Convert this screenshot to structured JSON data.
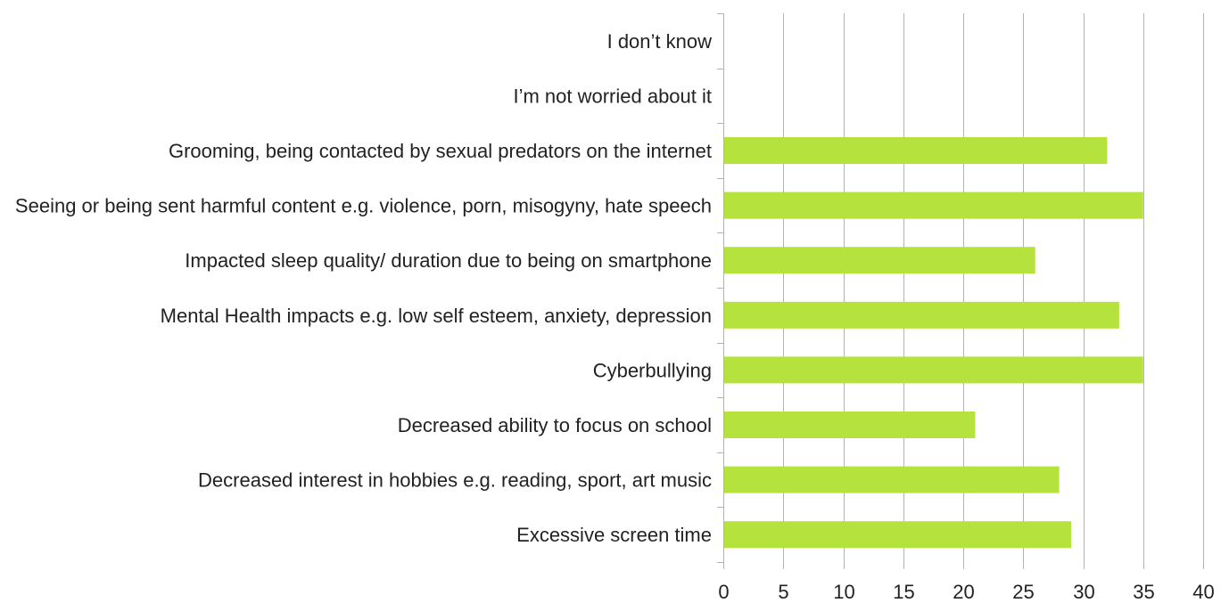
{
  "chart_data": {
    "type": "bar",
    "orientation": "horizontal",
    "categories": [
      "I don’t know",
      "I’m not worried about it",
      "Grooming, being contacted by sexual predators on the internet",
      "Seeing or being sent harmful content e.g. violence, porn, misogyny, hate speech",
      "Impacted sleep quality/ duration due to being on smartphone",
      "Mental Health impacts e.g. low self esteem, anxiety, depression",
      "Cyberbullying",
      "Decreased ability to focus on school",
      "Decreased interest in hobbies e.g. reading, sport, art music",
      "Excessive screen time"
    ],
    "values": [
      0,
      0,
      32,
      35,
      26,
      33,
      35,
      21,
      28,
      29
    ],
    "xlim": [
      0,
      40
    ],
    "xticks": [
      0,
      5,
      10,
      15,
      20,
      25,
      30,
      35,
      40
    ],
    "grid": true,
    "legend": "none",
    "bar_color": "#b5e23c",
    "title": "",
    "xlabel": "",
    "ylabel": ""
  }
}
